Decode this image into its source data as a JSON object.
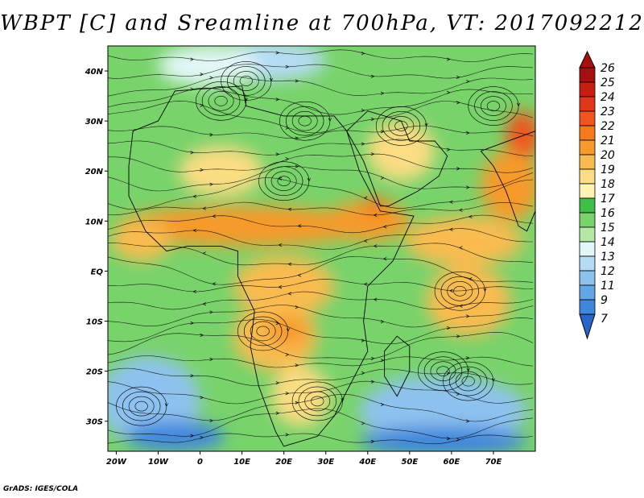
{
  "title": "WBPT [C] and Sreamline at 700hPa, VT: 2017092212",
  "credit": "GrADS: IGES/COLA",
  "map": {
    "lat_range": [
      -36,
      45
    ],
    "lon_range": [
      -22,
      80
    ],
    "lat_ticks": [
      {
        "value": 40,
        "label": "40N"
      },
      {
        "value": 30,
        "label": "30N"
      },
      {
        "value": 20,
        "label": "20N"
      },
      {
        "value": 10,
        "label": "10N"
      },
      {
        "value": 0,
        "label": "EQ"
      },
      {
        "value": -10,
        "label": "10S"
      },
      {
        "value": -20,
        "label": "20S"
      },
      {
        "value": -30,
        "label": "30S"
      }
    ],
    "lon_ticks": [
      {
        "value": -20,
        "label": "20W"
      },
      {
        "value": -10,
        "label": "10W"
      },
      {
        "value": 0,
        "label": "0"
      },
      {
        "value": 10,
        "label": "10E"
      },
      {
        "value": 20,
        "label": "20E"
      },
      {
        "value": 30,
        "label": "30E"
      },
      {
        "value": 40,
        "label": "40E"
      },
      {
        "value": 50,
        "label": "50E"
      },
      {
        "value": 60,
        "label": "60E"
      },
      {
        "value": 70,
        "label": "70E"
      }
    ]
  },
  "colorbar": {
    "levels": [
      {
        "label": "26",
        "color": "#a50f0f"
      },
      {
        "label": "25",
        "color": "#c81e12"
      },
      {
        "label": "24",
        "color": "#e1361a"
      },
      {
        "label": "23",
        "color": "#f0551e"
      },
      {
        "label": "22",
        "color": "#f57a1e"
      },
      {
        "label": "21",
        "color": "#f79a2b"
      },
      {
        "label": "20",
        "color": "#f9bb50"
      },
      {
        "label": "19",
        "color": "#fbdd82"
      },
      {
        "label": "18",
        "color": "#fff4b4"
      },
      {
        "label": "17",
        "color": "#3fbf4a"
      },
      {
        "label": "16",
        "color": "#79d36b"
      },
      {
        "label": "15",
        "color": "#b6e8a5"
      },
      {
        "label": "14",
        "color": "#e2f7f7"
      },
      {
        "label": "13",
        "color": "#b6dcf5"
      },
      {
        "label": "12",
        "color": "#8ec2ee"
      },
      {
        "label": "11",
        "color": "#64a5e6"
      },
      {
        "label": "9",
        "color": "#3f86dc"
      },
      {
        "label": "7",
        "color": "#2666cc"
      }
    ]
  },
  "field_regions": [
    {
      "name": "north-sea-cold",
      "color": "#b6dcf5",
      "lon": 16,
      "lat": 42,
      "rlon": 14,
      "rlat": 4
    },
    {
      "name": "north-sea-cold-2",
      "color": "#e2f7f7",
      "lon": 2,
      "lat": 41,
      "rlon": 12,
      "rlat": 4
    },
    {
      "name": "sahara-warm",
      "color": "#fbdd82",
      "lon": 5,
      "lat": 20,
      "rlon": 10,
      "rlat": 5
    },
    {
      "name": "sahel-band",
      "color": "#f79a2b",
      "lon": 10,
      "lat": 9,
      "rlon": 30,
      "rlat": 4
    },
    {
      "name": "horn-band",
      "color": "#f79a2b",
      "lon": 40,
      "lat": 10,
      "rlon": 10,
      "rlat": 4
    },
    {
      "name": "red-sea-hot",
      "color": "#f57a1e",
      "lon": 42,
      "lat": 13,
      "rlon": 3,
      "rlat": 2
    },
    {
      "name": "arabia-warm",
      "color": "#fbdd82",
      "lon": 48,
      "lat": 24,
      "rlon": 8,
      "rlat": 6
    },
    {
      "name": "persia-hot",
      "color": "#f0551e",
      "lon": 77,
      "lat": 27,
      "rlon": 4,
      "rlat": 5
    },
    {
      "name": "india-warm",
      "color": "#f79a2b",
      "lon": 74,
      "lat": 17,
      "rlon": 7,
      "rlat": 7
    },
    {
      "name": "arabian-sea-warm",
      "color": "#f9bb50",
      "lon": 63,
      "lat": 6,
      "rlon": 14,
      "rlat": 5
    },
    {
      "name": "indian-ocean-warm",
      "color": "#f9bb50",
      "lon": 64,
      "lat": -6,
      "rlon": 10,
      "rlat": 7
    },
    {
      "name": "congo-warm",
      "color": "#f9bb50",
      "lon": 20,
      "lat": -3,
      "rlon": 12,
      "rlat": 6
    },
    {
      "name": "southern-africa-warm",
      "color": "#f9bb50",
      "lon": 18,
      "lat": -13,
      "rlon": 10,
      "rlat": 7
    },
    {
      "name": "kalahari-hot",
      "color": "#f79a2b",
      "lon": 21,
      "lat": -12,
      "rlon": 5,
      "rlat": 3
    },
    {
      "name": "south-africa-warm",
      "color": "#fbdd82",
      "lon": 24,
      "lat": -25,
      "rlon": 7,
      "rlat": 6
    },
    {
      "name": "madagascar-green",
      "color": "#79d36b",
      "lon": 47,
      "lat": -19,
      "rlon": 4,
      "rlat": 6
    },
    {
      "name": "south-atlantic-cold",
      "color": "#8ec2ee",
      "lon": -12,
      "lat": -26,
      "rlon": 12,
      "rlat": 9
    },
    {
      "name": "south-atlantic-deep",
      "color": "#3f86dc",
      "lon": -6,
      "lat": -33,
      "rlon": 12,
      "rlat": 3
    },
    {
      "name": "south-indian-cold",
      "color": "#8ec2ee",
      "lon": 58,
      "lat": -28,
      "rlon": 20,
      "rlat": 7
    },
    {
      "name": "south-indian-deep",
      "color": "#3f86dc",
      "lon": 58,
      "lat": -34,
      "rlon": 20,
      "rlat": 3
    },
    {
      "name": "atlantic-warm",
      "color": "#f9bb50",
      "lon": -14,
      "lat": 6,
      "rlon": 7,
      "rlat": 4
    }
  ],
  "land_outline": {
    "africa": [
      [
        -17,
        21
      ],
      [
        -16,
        28
      ],
      [
        -10,
        30
      ],
      [
        -6,
        36
      ],
      [
        10,
        37
      ],
      [
        11,
        33
      ],
      [
        20,
        31
      ],
      [
        32,
        31
      ],
      [
        35,
        28
      ],
      [
        38,
        20
      ],
      [
        43,
        12
      ],
      [
        51,
        11
      ],
      [
        46,
        2
      ],
      [
        40,
        -3
      ],
      [
        39,
        -10
      ],
      [
        40,
        -16
      ],
      [
        35,
        -24
      ],
      [
        32,
        -29
      ],
      [
        28,
        -33
      ],
      [
        20,
        -35
      ],
      [
        18,
        -32
      ],
      [
        14,
        -23
      ],
      [
        12,
        -15
      ],
      [
        13,
        -8
      ],
      [
        9,
        -1
      ],
      [
        9,
        4
      ],
      [
        5,
        5
      ],
      [
        -3,
        5
      ],
      [
        -8,
        4
      ],
      [
        -13,
        8
      ],
      [
        -17,
        15
      ]
    ],
    "arabia": [
      [
        35,
        28
      ],
      [
        39,
        22
      ],
      [
        43,
        13
      ],
      [
        45,
        13
      ],
      [
        52,
        16
      ],
      [
        57,
        19
      ],
      [
        59,
        23
      ],
      [
        56,
        26
      ],
      [
        50,
        26
      ],
      [
        48,
        30
      ],
      [
        40,
        32
      ]
    ],
    "madagascar": [
      [
        44,
        -16
      ],
      [
        47,
        -13
      ],
      [
        50,
        -15
      ],
      [
        50,
        -20
      ],
      [
        47,
        -25
      ],
      [
        44,
        -21
      ]
    ],
    "india": [
      [
        67,
        24
      ],
      [
        70,
        21
      ],
      [
        73,
        16
      ],
      [
        76,
        9
      ],
      [
        78,
        8
      ],
      [
        80,
        12
      ],
      [
        80,
        28
      ]
    ]
  },
  "streamline_vortices": [
    {
      "lon": 25,
      "lat": 30
    },
    {
      "lon": 5,
      "lat": 34
    },
    {
      "lon": 11,
      "lat": 38
    },
    {
      "lon": 62,
      "lat": -4
    },
    {
      "lon": 58,
      "lat": -20
    },
    {
      "lon": 64,
      "lat": -22
    },
    {
      "lon": 28,
      "lat": -26
    },
    {
      "lon": 15,
      "lat": -12
    },
    {
      "lon": -14,
      "lat": -27
    },
    {
      "lon": 48,
      "lat": 29
    },
    {
      "lon": 70,
      "lat": 33
    },
    {
      "lon": 20,
      "lat": 18
    }
  ]
}
